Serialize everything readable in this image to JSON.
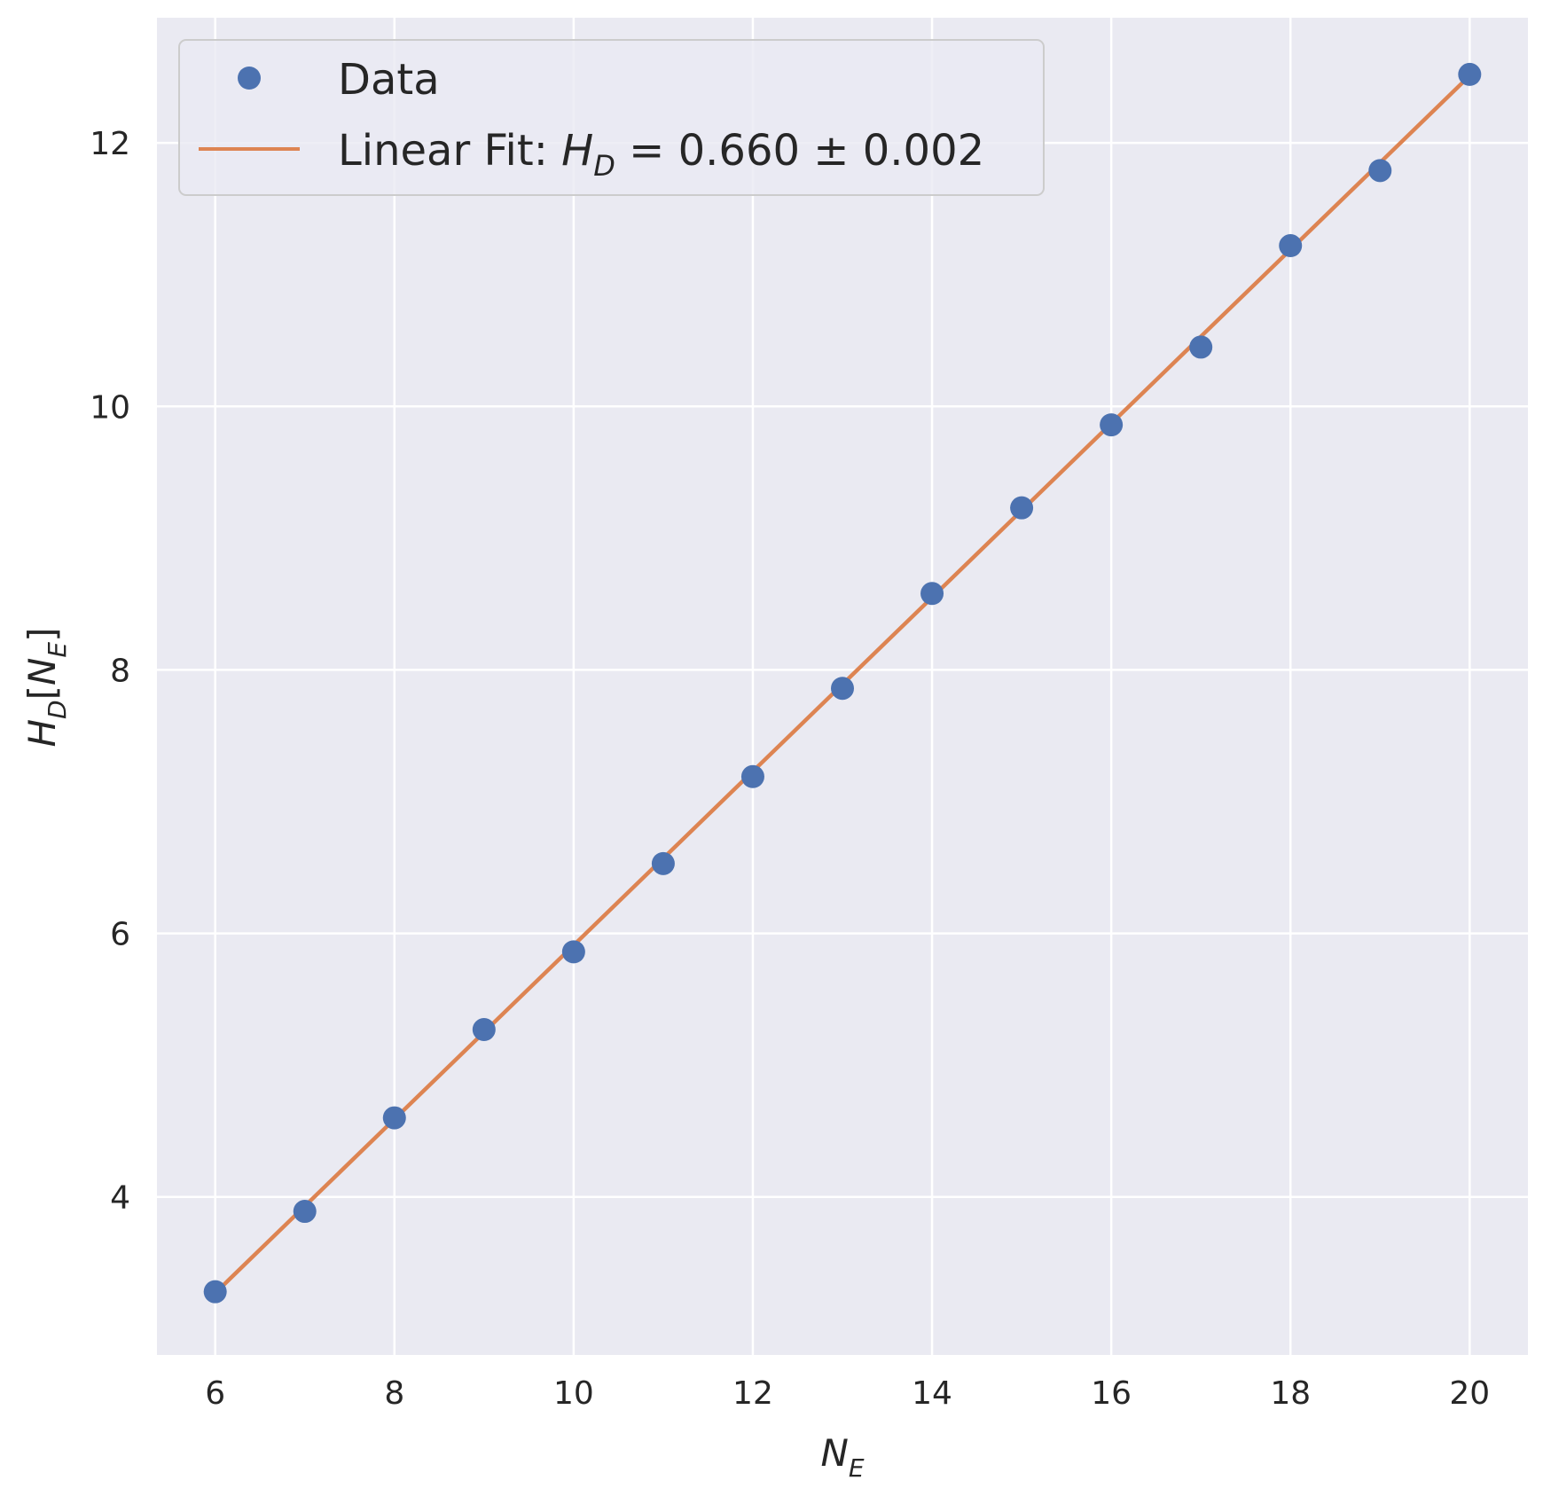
{
  "chart_data": {
    "type": "scatter",
    "background_color": "#EAEAF2",
    "grid": true,
    "xlim": [
      5.35,
      20.65
    ],
    "ylim": [
      2.8,
      12.95
    ],
    "x_ticks": [
      "6",
      "8",
      "10",
      "12",
      "14",
      "16",
      "18",
      "20"
    ],
    "y_ticks": [
      "4",
      "6",
      "8",
      "10",
      "12"
    ],
    "xlabel": {
      "main": "N",
      "sub": "E"
    },
    "ylabel": {
      "main": "H",
      "sub": "D",
      "bracket_open": "[",
      "inner": "N",
      "inner_sub": "E",
      "bracket_close": "]"
    },
    "legend": {
      "placement": "top-left",
      "entries": [
        {
          "label": "Data"
        },
        {
          "label_prefix": "Linear Fit: ",
          "math_main": "H",
          "math_sub": "D",
          "math_eq": " = ",
          "label_suffix": " 0.660 ± 0.002"
        }
      ]
    },
    "series": [
      {
        "name": "Data",
        "kind": "scatter",
        "color": "#4C72B0",
        "x": [
          6,
          7,
          8,
          9,
          10,
          11,
          12,
          13,
          14,
          15,
          16,
          17,
          18,
          19,
          20
        ],
        "y": [
          3.28,
          3.89,
          4.6,
          5.27,
          5.86,
          6.53,
          7.19,
          7.86,
          8.58,
          9.23,
          9.86,
          10.45,
          11.22,
          11.79,
          12.52
        ]
      },
      {
        "name": "Linear Fit",
        "kind": "line",
        "color": "#DD8452",
        "x": [
          6,
          20
        ],
        "y": [
          3.27,
          12.51
        ]
      }
    ]
  }
}
